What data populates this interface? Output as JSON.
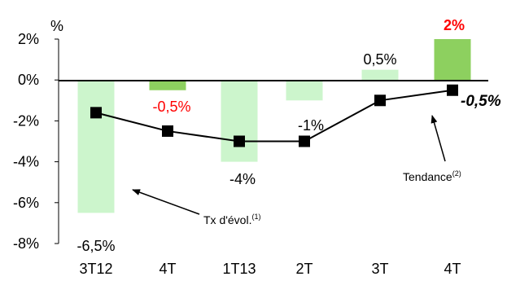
{
  "chart_data": {
    "type": "bar",
    "unit_label": "%",
    "categories": [
      "3T12",
      "4T",
      "1T13",
      "2T",
      "3T",
      "4T"
    ],
    "ylim": [
      -8,
      2
    ],
    "yticks": [
      2,
      0,
      -2,
      -4,
      -6,
      -8
    ],
    "ytick_labels": [
      "2%",
      "0%",
      "-2%",
      "-4%",
      "-6%",
      "-8%"
    ],
    "grid": false,
    "bars": {
      "values": [
        -6.5,
        -0.5,
        -4,
        -1,
        0.5,
        2
      ],
      "labels": [
        "-6,5%",
        "-0,5%",
        "-4%",
        "-1%",
        "0,5%",
        "2%"
      ],
      "colors": [
        "#ccf5cc",
        "#8dd05f",
        "#ccf5cc",
        "#ccf5cc",
        "#ccf5cc",
        "#8dd05f"
      ],
      "label_colors": [
        "#000000",
        "#ff0000",
        "#000000",
        "#000000",
        "#000000",
        "#ff0000"
      ]
    },
    "line": {
      "values": [
        -1.6,
        -2.5,
        -3.0,
        -3.0,
        -1.0,
        -0.5
      ],
      "end_label": "-0,5%",
      "color": "#000000"
    },
    "annotations": {
      "bars_label": "Tx d'évol.",
      "bars_sup": "(1)",
      "line_label": "Tendance",
      "line_sup": "(2)"
    }
  }
}
